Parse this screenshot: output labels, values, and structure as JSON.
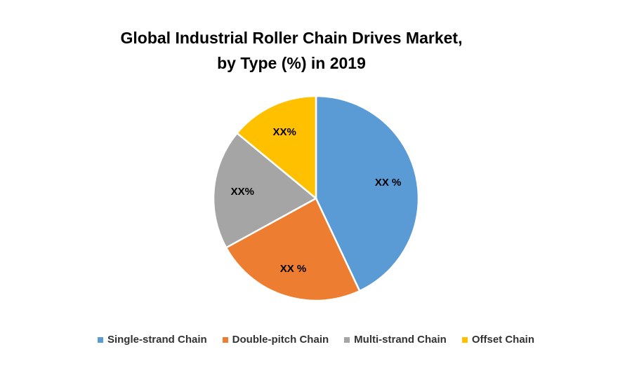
{
  "chart_data": {
    "type": "pie",
    "title": [
      "Global Industrial Roller Chain Drives Market,",
      "by Type (%) in 2019"
    ],
    "legend_position": "bottom",
    "series": [
      {
        "name": "Single-strand Chain",
        "value": 43,
        "label": "XX %",
        "color": "#5B9BD5"
      },
      {
        "name": "Double-pitch Chain",
        "value": 24,
        "label": "XX %",
        "color": "#ED7D31"
      },
      {
        "name": "Multi-strand Chain",
        "value": 19,
        "label": "XX%",
        "color": "#A5A5A5"
      },
      {
        "name": "Offset Chain",
        "value": 14,
        "label": "XX%",
        "color": "#FFC000"
      }
    ]
  }
}
